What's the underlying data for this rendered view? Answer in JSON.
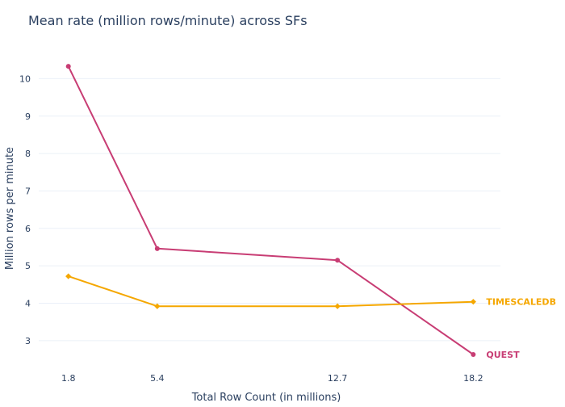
{
  "chart_data": {
    "type": "line",
    "title": "Mean rate (million rows/minute) across SFs",
    "xlabel": "Total Row Count (in millions)",
    "ylabel": "Million rows per minute",
    "x": [
      1.8,
      5.4,
      12.7,
      18.2
    ],
    "xticks": [
      "1.8",
      "5.4",
      "12.7",
      "18.2"
    ],
    "xlim": [
      0.6,
      19.3
    ],
    "ylim": [
      2.35,
      10.85
    ],
    "yticks": [
      3,
      4,
      5,
      6,
      7,
      8,
      9,
      10
    ],
    "grid": true,
    "legend": "none (series labeled at line ends)",
    "series": [
      {
        "name": "QUEST",
        "color": "#c83d74",
        "marker": "circle",
        "values": [
          10.33,
          5.46,
          5.15,
          2.63
        ]
      },
      {
        "name": "TIMESCALEDB",
        "color": "#f5a700",
        "marker": "diamond",
        "values": [
          4.72,
          3.92,
          3.92,
          4.04
        ]
      }
    ]
  }
}
